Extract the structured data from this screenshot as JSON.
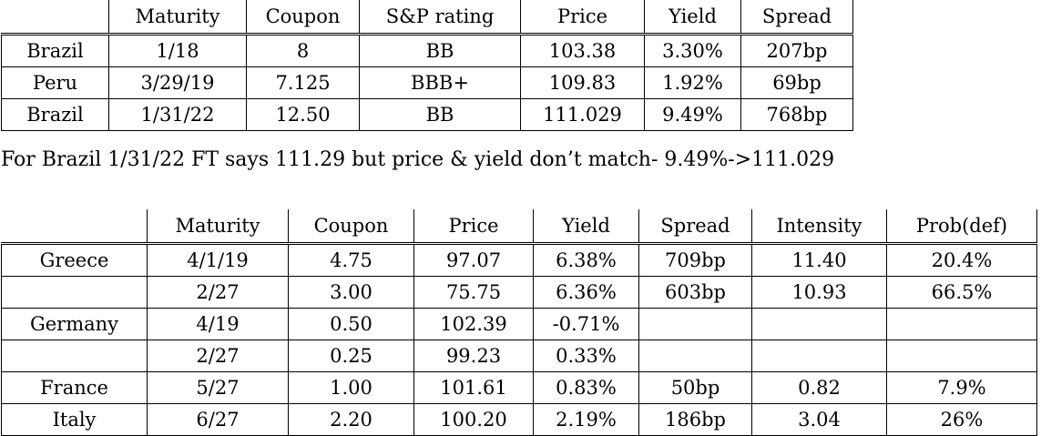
{
  "table1": {
    "headers": [
      "",
      "Maturity",
      "Coupon",
      "S&P rating",
      "Price",
      "Yield",
      "Spread"
    ],
    "rows": [
      [
        "Brazil",
        "1/18",
        "8",
        "BB",
        "103.38",
        "3.30%",
        "207bp"
      ],
      [
        "Peru",
        "3/29/19",
        "7.125",
        "BBB+",
        "109.83",
        "1.92%",
        "69bp"
      ],
      [
        "Brazil",
        "1/31/22",
        "12.50",
        "BB",
        "111.029",
        "9.49%",
        "768bp"
      ]
    ]
  },
  "note": "For Brazil 1/31/22 FT says 111.29 but price & yield don’t match- 9.49%->111.029",
  "table2": {
    "headers": [
      "",
      "Maturity",
      "Coupon",
      "Price",
      "Yield",
      "Spread",
      "Intensity",
      "Prob(def)"
    ],
    "rows": [
      [
        "Greece",
        "4/1/19",
        "4.75",
        "97.07",
        "6.38%",
        "709bp",
        "11.40",
        "20.4%"
      ],
      [
        "",
        "2/27",
        "3.00",
        "75.75",
        "6.36%",
        "603bp",
        "10.93",
        "66.5%"
      ],
      [
        "Germany",
        "4/19",
        "0.50",
        "102.39",
        "-0.71%",
        "",
        "",
        ""
      ],
      [
        "",
        "2/27",
        "0.25",
        "99.23",
        "0.33%",
        "",
        "",
        ""
      ],
      [
        "France",
        "5/27",
        "1.00",
        "101.61",
        "0.83%",
        "50bp",
        "0.82",
        "7.9%"
      ],
      [
        "Italy",
        "6/27",
        "2.20",
        "100.20",
        "2.19%",
        "186bp",
        "3.04",
        "26%"
      ]
    ]
  }
}
